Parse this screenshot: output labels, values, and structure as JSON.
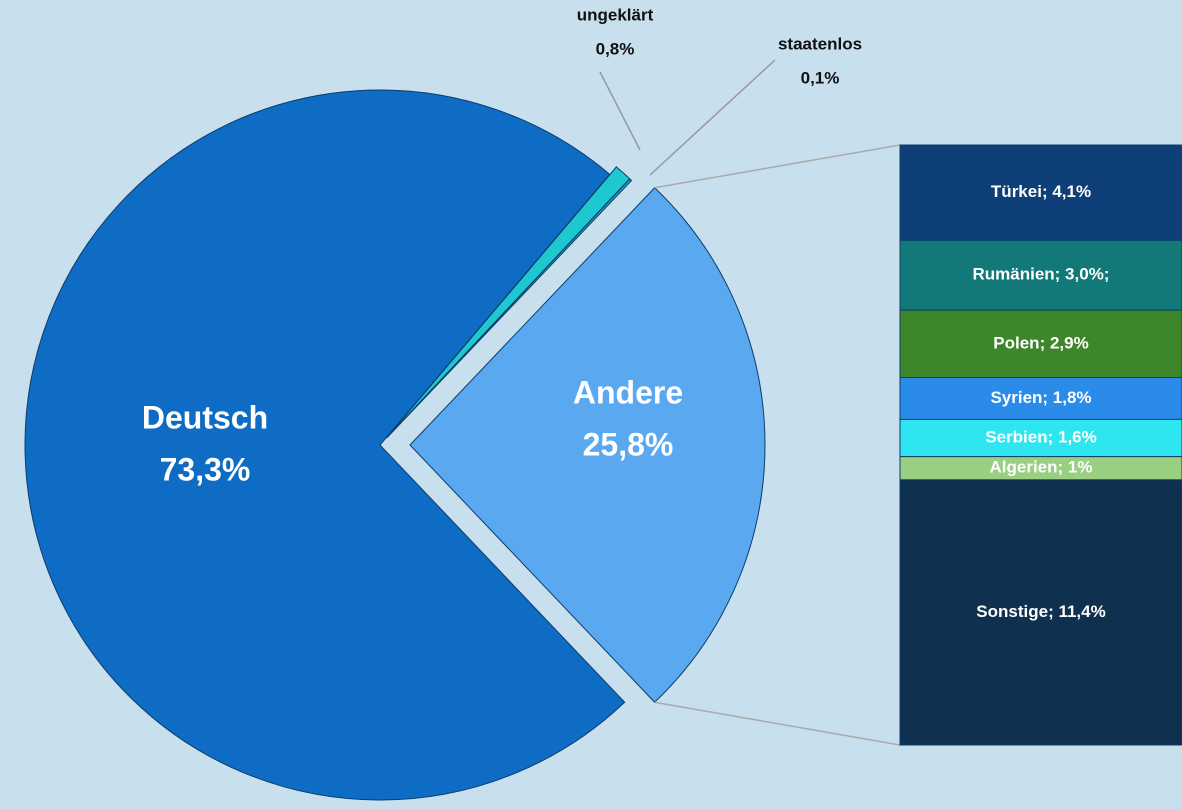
{
  "chart_data": {
    "type": "pie",
    "categories": [
      "Andere",
      "Deutsch",
      "ungeklärt",
      "staatenlos"
    ],
    "values": [
      25.8,
      73.3,
      0.8,
      0.1
    ],
    "value_labels": [
      "25,8%",
      "73,3%",
      "0,8%",
      "0,1%"
    ],
    "colors": [
      "#5aa8f0",
      "#0f6cc4",
      "#1ec8d0",
      "#22b4bc"
    ],
    "breakdown": {
      "type": "bar",
      "values": [
        4.1,
        3.0,
        2.9,
        1.8,
        1.6,
        1,
        11.4
      ],
      "value_labels": [
        "Türkei; 4,1%",
        "Rumänien; 3,0%;",
        "Polen; 2,9%",
        "Syrien; 1,8%",
        "Serbien; 1,6%",
        "Algerien; 1%",
        "Sonstige; 11,4%"
      ],
      "colors": [
        "#0f3f78",
        "#127878",
        "#3e862a",
        "#2a8ce8",
        "#2ee6f0",
        "#98cf80",
        "#10304f"
      ]
    }
  }
}
